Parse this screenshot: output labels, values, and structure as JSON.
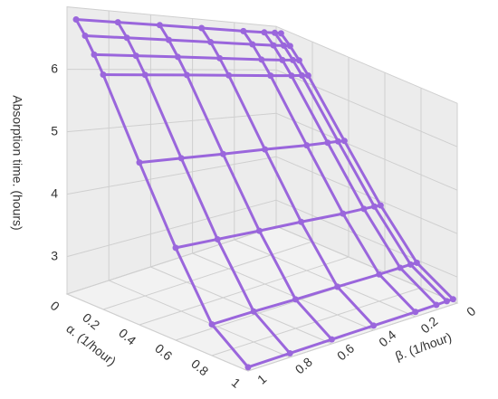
{
  "chart_data": {
    "type": "surface3d",
    "x_label": "α. (1/hour)",
    "y_label": "β. (1/hour)",
    "z_label": "Absorption time. (hours)",
    "x": [
      0.05,
      0.1,
      0.15,
      0.2,
      0.4,
      0.6,
      0.8,
      1.0
    ],
    "y": [
      0.02,
      0.05,
      0.1,
      0.2,
      0.4,
      0.6,
      0.8,
      1.0
    ],
    "z": [
      [
        6.92,
        6.92,
        6.91,
        6.9,
        6.89,
        6.88,
        6.87,
        6.86
      ],
      [
        6.72,
        6.72,
        6.71,
        6.7,
        6.69,
        6.68,
        6.67,
        6.66
      ],
      [
        6.48,
        6.48,
        6.47,
        6.46,
        6.45,
        6.44,
        6.43,
        6.42
      ],
      [
        6.22,
        6.22,
        6.21,
        6.2,
        6.19,
        6.18,
        6.17,
        6.16
      ],
      [
        5.08,
        5.08,
        5.07,
        5.05,
        5.04,
        5.02,
        5.01,
        5.0
      ],
      [
        3.96,
        3.96,
        3.95,
        3.93,
        3.92,
        3.9,
        3.89,
        3.88
      ],
      [
        3.0,
        3.0,
        2.99,
        2.97,
        2.95,
        2.93,
        2.92,
        2.9
      ],
      [
        2.52,
        2.52,
        2.51,
        2.5,
        2.49,
        2.48,
        2.47,
        2.46
      ]
    ],
    "color": "#9a66dc",
    "xlim": [
      0,
      1
    ],
    "ylim": [
      0,
      1
    ],
    "zlim": [
      2.4,
      7
    ],
    "xticks": [
      0,
      0.2,
      0.4,
      0.6,
      0.8,
      1
    ],
    "yticks": [
      0,
      0.2,
      0.4,
      0.6,
      0.8,
      1
    ],
    "zticks": [
      3,
      4,
      5,
      6
    ],
    "grid": true
  }
}
